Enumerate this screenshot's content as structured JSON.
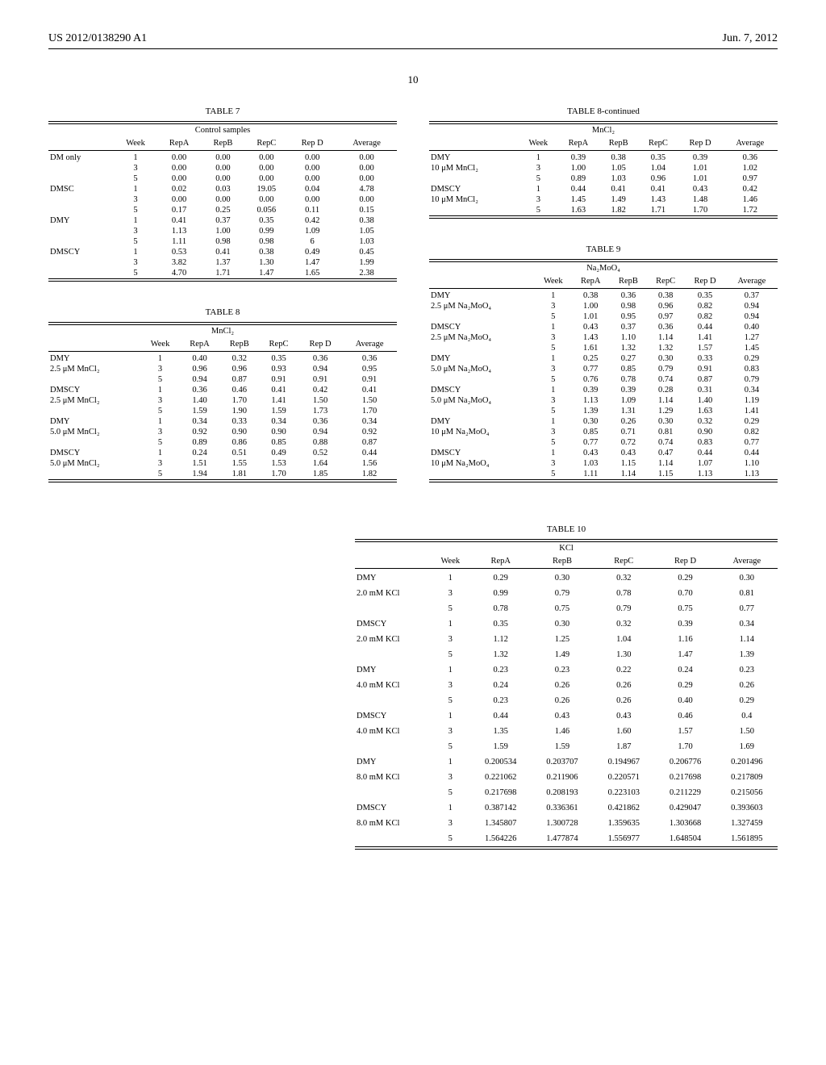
{
  "header": {
    "doc_id": "US 2012/0138290 A1",
    "date": "Jun. 7, 2012",
    "page_number": "10"
  },
  "table7": {
    "title": "TABLE 7",
    "subtitle": "Control samples",
    "columns": [
      "",
      "Week",
      "RepA",
      "RepB",
      "RepC",
      "Rep D",
      "Average"
    ],
    "rows": [
      [
        "DM only",
        "1",
        "0.00",
        "0.00",
        "0.00",
        "0.00",
        "0.00"
      ],
      [
        "",
        "3",
        "0.00",
        "0.00",
        "0.00",
        "0.00",
        "0.00"
      ],
      [
        "",
        "5",
        "0.00",
        "0.00",
        "0.00",
        "0.00",
        "0.00"
      ],
      [
        "DMSC",
        "1",
        "0.02",
        "0.03",
        "19.05",
        "0.04",
        "4.78"
      ],
      [
        "",
        "3",
        "0.00",
        "0.00",
        "0.00",
        "0.00",
        "0.00"
      ],
      [
        "",
        "5",
        "0.17",
        "0.25",
        "0.056",
        "0.11",
        "0.15"
      ],
      [
        "DMY",
        "1",
        "0.41",
        "0.37",
        "0.35",
        "0.42",
        "0.38"
      ],
      [
        "",
        "3",
        "1.13",
        "1.00",
        "0.99",
        "1.09",
        "1.05"
      ],
      [
        "",
        "5",
        "1.11",
        "0.98",
        "0.98",
        "6",
        "1.03"
      ],
      [
        "DMSCY",
        "1",
        "0.53",
        "0.41",
        "0.38",
        "0.49",
        "0.45"
      ],
      [
        "",
        "3",
        "3.82",
        "1.37",
        "1.30",
        "1.47",
        "1.99"
      ],
      [
        "",
        "5",
        "4.70",
        "1.71",
        "1.47",
        "1.65",
        "2.38"
      ]
    ]
  },
  "table8": {
    "title": "TABLE 8",
    "subtitle": "MnCl₂",
    "columns": [
      "",
      "Week",
      "RepA",
      "RepB",
      "RepC",
      "Rep D",
      "Average"
    ],
    "rows": [
      [
        "DMY",
        "1",
        "0.40",
        "0.32",
        "0.35",
        "0.36",
        "0.36"
      ],
      [
        "2.5 μM MnCl₂",
        "3",
        "0.96",
        "0.96",
        "0.93",
        "0.94",
        "0.95"
      ],
      [
        "",
        "5",
        "0.94",
        "0.87",
        "0.91",
        "0.91",
        "0.91"
      ],
      [
        "DMSCY",
        "1",
        "0.36",
        "0.46",
        "0.41",
        "0.42",
        "0.41"
      ],
      [
        "2.5 μM MnCl₂",
        "3",
        "1.40",
        "1.70",
        "1.41",
        "1.50",
        "1.50"
      ],
      [
        "",
        "5",
        "1.59",
        "1.90",
        "1.59",
        "1.73",
        "1.70"
      ],
      [
        "DMY",
        "1",
        "0.34",
        "0.33",
        "0.34",
        "0.36",
        "0.34"
      ],
      [
        "5.0 μM MnCl₂",
        "3",
        "0.92",
        "0.90",
        "0.90",
        "0.94",
        "0.92"
      ],
      [
        "",
        "5",
        "0.89",
        "0.86",
        "0.85",
        "0.88",
        "0.87"
      ],
      [
        "DMSCY",
        "1",
        "0.24",
        "0.51",
        "0.49",
        "0.52",
        "0.44"
      ],
      [
        "5.0 μM MnCl₂",
        "3",
        "1.51",
        "1.55",
        "1.53",
        "1.64",
        "1.56"
      ],
      [
        "",
        "5",
        "1.94",
        "1.81",
        "1.70",
        "1.85",
        "1.82"
      ]
    ]
  },
  "table8cont": {
    "title": "TABLE 8-continued",
    "subtitle": "MnCl₂",
    "columns": [
      "",
      "Week",
      "RepA",
      "RepB",
      "RepC",
      "Rep D",
      "Average"
    ],
    "rows": [
      [
        "DMY",
        "1",
        "0.39",
        "0.38",
        "0.35",
        "0.39",
        "0.36"
      ],
      [
        "10 μM MnCl₂",
        "3",
        "1.00",
        "1.05",
        "1.04",
        "1.01",
        "1.02"
      ],
      [
        "",
        "5",
        "0.89",
        "1.03",
        "0.96",
        "1.01",
        "0.97"
      ],
      [
        "DMSCY",
        "1",
        "0.44",
        "0.41",
        "0.41",
        "0.43",
        "0.42"
      ],
      [
        "10 μM MnCl₂",
        "3",
        "1.45",
        "1.49",
        "1.43",
        "1.48",
        "1.46"
      ],
      [
        "",
        "5",
        "1.63",
        "1.82",
        "1.71",
        "1.70",
        "1.72"
      ]
    ]
  },
  "table9": {
    "title": "TABLE 9",
    "subtitle": "Na₂MoO₄",
    "columns": [
      "",
      "Week",
      "RepA",
      "RepB",
      "RepC",
      "Rep D",
      "Average"
    ],
    "rows": [
      [
        "DMY",
        "1",
        "0.38",
        "0.36",
        "0.38",
        "0.35",
        "0.37"
      ],
      [
        "2.5 μM Na₂MoO₄",
        "3",
        "1.00",
        "0.98",
        "0.96",
        "0.82",
        "0.94"
      ],
      [
        "",
        "5",
        "1.01",
        "0.95",
        "0.97",
        "0.82",
        "0.94"
      ],
      [
        "DMSCY",
        "1",
        "0.43",
        "0.37",
        "0.36",
        "0.44",
        "0.40"
      ],
      [
        "2.5 μM Na₂MoO₄",
        "3",
        "1.43",
        "1.10",
        "1.14",
        "1.41",
        "1.27"
      ],
      [
        "",
        "5",
        "1.61",
        "1.32",
        "1.32",
        "1.57",
        "1.45"
      ],
      [
        "DMY",
        "1",
        "0.25",
        "0.27",
        "0.30",
        "0.33",
        "0.29"
      ],
      [
        "5.0 μM Na₂MoO₄",
        "3",
        "0.77",
        "0.85",
        "0.79",
        "0.91",
        "0.83"
      ],
      [
        "",
        "5",
        "0.76",
        "0.78",
        "0.74",
        "0.87",
        "0.79"
      ],
      [
        "DMSCY",
        "1",
        "0.39",
        "0.39",
        "0.28",
        "0.31",
        "0.34"
      ],
      [
        "5.0 μM Na₂MoO₄",
        "3",
        "1.13",
        "1.09",
        "1.14",
        "1.40",
        "1.19"
      ],
      [
        "",
        "5",
        "1.39",
        "1.31",
        "1.29",
        "1.63",
        "1.41"
      ],
      [
        "DMY",
        "1",
        "0.30",
        "0.26",
        "0.30",
        "0.32",
        "0.29"
      ],
      [
        "10 μM Na₂MoO₄",
        "3",
        "0.85",
        "0.71",
        "0.81",
        "0.90",
        "0.82"
      ],
      [
        "",
        "5",
        "0.77",
        "0.72",
        "0.74",
        "0.83",
        "0.77"
      ],
      [
        "DMSCY",
        "1",
        "0.43",
        "0.43",
        "0.47",
        "0.44",
        "0.44"
      ],
      [
        "10 μM Na₂MoO₄",
        "3",
        "1.03",
        "1.15",
        "1.14",
        "1.07",
        "1.10"
      ],
      [
        "",
        "5",
        "1.11",
        "1.14",
        "1.15",
        "1.13",
        "1.13"
      ]
    ]
  },
  "table10": {
    "title": "TABLE 10",
    "subtitle": "KCl",
    "columns": [
      "",
      "Week",
      "RepA",
      "RepB",
      "RepC",
      "Rep D",
      "Average"
    ],
    "rows": [
      [
        "DMY",
        "1",
        "0.29",
        "0.30",
        "0.32",
        "0.29",
        "0.30"
      ],
      [
        "2.0 mM KCl",
        "3",
        "0.99",
        "0.79",
        "0.78",
        "0.70",
        "0.81"
      ],
      [
        "",
        "5",
        "0.78",
        "0.75",
        "0.79",
        "0.75",
        "0.77"
      ],
      [
        "DMSCY",
        "1",
        "0.35",
        "0.30",
        "0.32",
        "0.39",
        "0.34"
      ],
      [
        "2.0 mM KCl",
        "3",
        "1.12",
        "1.25",
        "1.04",
        "1.16",
        "1.14"
      ],
      [
        "",
        "5",
        "1.32",
        "1.49",
        "1.30",
        "1.47",
        "1.39"
      ],
      [
        "DMY",
        "1",
        "0.23",
        "0.23",
        "0.22",
        "0.24",
        "0.23"
      ],
      [
        "4.0 mM KCl",
        "3",
        "0.24",
        "0.26",
        "0.26",
        "0.29",
        "0.26"
      ],
      [
        "",
        "5",
        "0.23",
        "0.26",
        "0.26",
        "0.40",
        "0.29"
      ],
      [
        "DMSCY",
        "1",
        "0.44",
        "0.43",
        "0.43",
        "0.46",
        "0.4"
      ],
      [
        "4.0 mM KCl",
        "3",
        "1.35",
        "1.46",
        "1.60",
        "1.57",
        "1.50"
      ],
      [
        "",
        "5",
        "1.59",
        "1.59",
        "1.87",
        "1.70",
        "1.69"
      ],
      [
        "DMY",
        "1",
        "0.200534",
        "0.203707",
        "0.194967",
        "0.206776",
        "0.201496"
      ],
      [
        "8.0 mM KCl",
        "3",
        "0.221062",
        "0.211906",
        "0.220571",
        "0.217698",
        "0.217809"
      ],
      [
        "",
        "5",
        "0.217698",
        "0.208193",
        "0.223103",
        "0.211229",
        "0.215056"
      ],
      [
        "DMSCY",
        "1",
        "0.387142",
        "0.336361",
        "0.421862",
        "0.429047",
        "0.393603"
      ],
      [
        "8.0 mM KCl",
        "3",
        "1.345807",
        "1.300728",
        "1.359635",
        "1.303668",
        "1.327459"
      ],
      [
        "",
        "5",
        "1.564226",
        "1.477874",
        "1.556977",
        "1.648504",
        "1.561895"
      ]
    ]
  }
}
